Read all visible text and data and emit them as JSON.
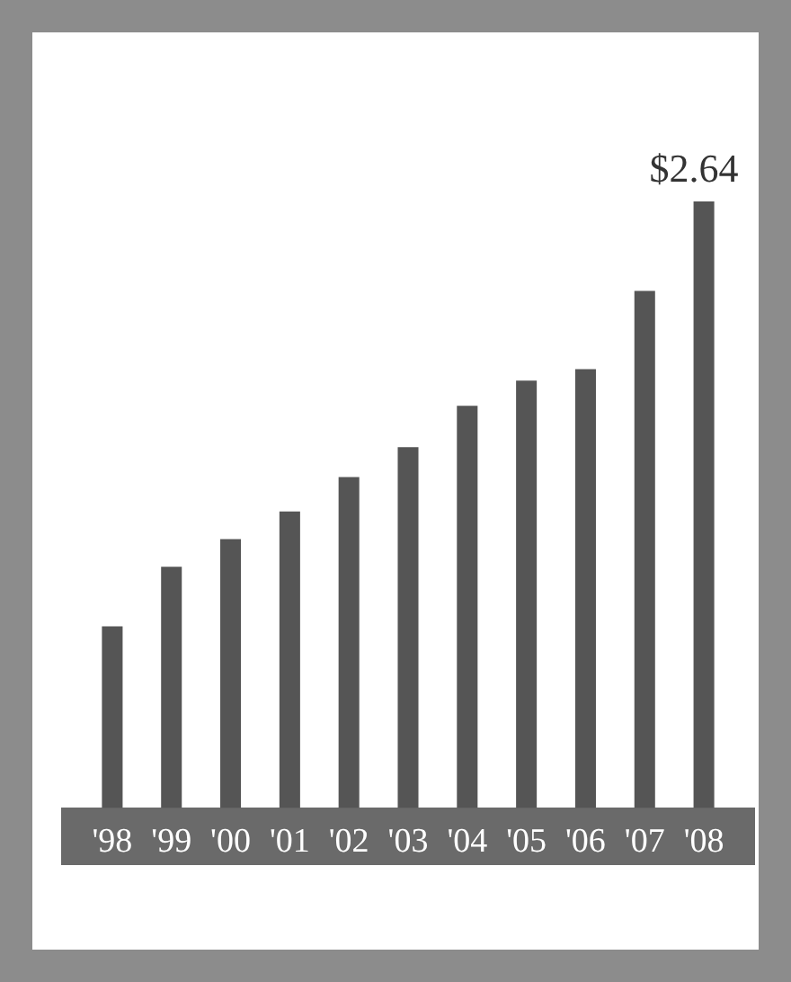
{
  "chart_data": {
    "type": "bar",
    "categories": [
      "'98",
      "'99",
      "'00",
      "'01",
      "'02",
      "'03",
      "'04",
      "'05",
      "'06",
      "'07",
      "'08"
    ],
    "values": [
      0.79,
      1.05,
      1.17,
      1.29,
      1.44,
      1.57,
      1.75,
      1.86,
      1.91,
      2.25,
      2.64
    ],
    "value_labels": [
      null,
      null,
      null,
      null,
      null,
      null,
      null,
      null,
      null,
      null,
      "$2.64"
    ],
    "color": "#555555"
  }
}
